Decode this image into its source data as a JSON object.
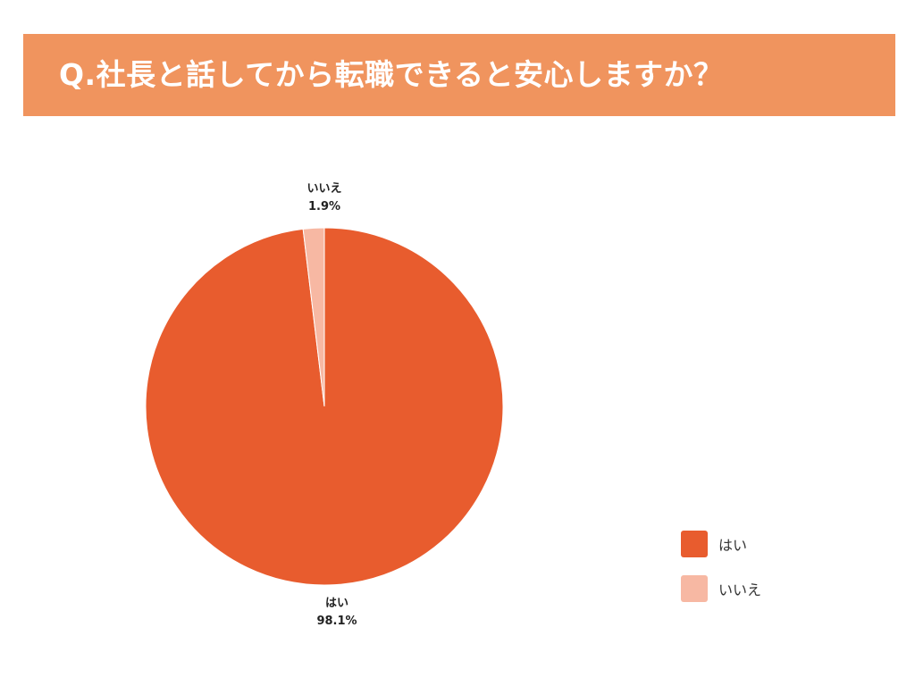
{
  "title": "Q.社長と話してから転職できると安心しますか？",
  "colors": {
    "header_bg": "#f0945e",
    "yes": "#e85c2e",
    "no": "#f7b8a3"
  },
  "chart_data": {
    "type": "pie",
    "title": "Q.社長と話してから転職できると安心しますか？",
    "slices": [
      {
        "label": "はい",
        "value": 98.1,
        "value_label": "98.1%",
        "color": "#e85c2e"
      },
      {
        "label": "いいえ",
        "value": 1.9,
        "value_label": "1.9%",
        "color": "#f7b8a3"
      }
    ],
    "legend": {
      "position": "bottom-right",
      "items": [
        "はい",
        "いいえ"
      ]
    }
  }
}
